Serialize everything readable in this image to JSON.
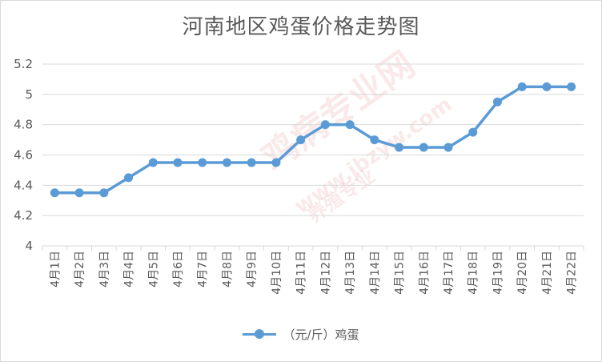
{
  "chart_data": {
    "type": "line",
    "title": "河南地区鸡蛋价格走势图",
    "categories": [
      "4月1日",
      "4月2日",
      "4月3日",
      "4月4日",
      "4月5日",
      "4月6日",
      "4月7日",
      "4月8日",
      "4月9日",
      "4月10日",
      "4月11日",
      "4月12日",
      "4月13日",
      "4月14日",
      "4月15日",
      "4月16日",
      "4月17日",
      "4月18日",
      "4月19日",
      "4月20日",
      "4月21日",
      "4月22日"
    ],
    "series": [
      {
        "name": "（元/斤）鸡蛋",
        "values": [
          4.35,
          4.35,
          4.35,
          4.45,
          4.55,
          4.55,
          4.55,
          4.55,
          4.55,
          4.55,
          4.7,
          4.8,
          4.8,
          4.7,
          4.65,
          4.65,
          4.65,
          4.75,
          4.95,
          5.05,
          5.05,
          5.05
        ]
      }
    ],
    "yticks": [
      "4",
      "4.2",
      "4.4",
      "4.6",
      "4.8",
      "5",
      "5.2"
    ],
    "ylim": [
      4,
      5.2
    ],
    "grid": true,
    "legend_position": "bottom",
    "series_color": "#5b9bd5",
    "watermark_text": [
      "鸡病专业网",
      "www.jbzyw.com",
      "养殖专业"
    ]
  }
}
